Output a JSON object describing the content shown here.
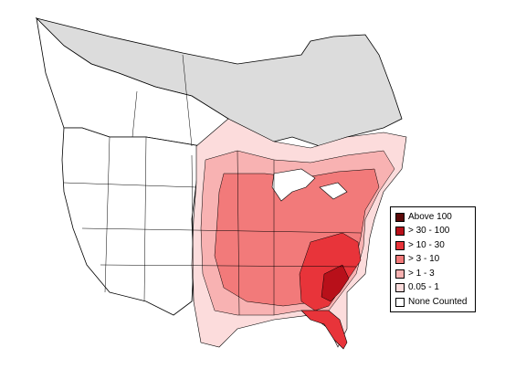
{
  "legend": {
    "items": [
      {
        "label": "Above 100",
        "color": "#5c0a0a"
      },
      {
        "label": "> 30 - 100",
        "color": "#b8101a"
      },
      {
        "label": "> 10 - 30",
        "color": "#e8343a"
      },
      {
        "label": "> 3 - 10",
        "color": "#f27a7a"
      },
      {
        "label": "> 1 - 3",
        "color": "#f8b2b2"
      },
      {
        "label": "0.05 - 1",
        "color": "#fcdcdc"
      },
      {
        "label": "None Counted",
        "color": "#ffffff"
      }
    ]
  },
  "map_colors": {
    "no_data": "#dcdcdc",
    "none_counted": "#ffffff",
    "border": "#000000"
  }
}
